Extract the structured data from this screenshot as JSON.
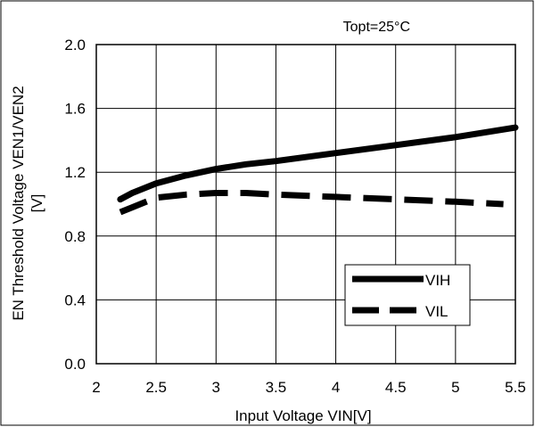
{
  "chart_data": {
    "type": "line",
    "title": "",
    "annotation": "Topt=25°C",
    "xlabel": "Input Voltage VIN[V]",
    "ylabel_line1": "EN Threshold Voltage VEN1/VEN2",
    "ylabel_line2": "[V]",
    "xlim": [
      2,
      5.5
    ],
    "ylim": [
      0,
      2.0
    ],
    "xticks": [
      2,
      2.5,
      3,
      3.5,
      4,
      4.5,
      5,
      5.5
    ],
    "xtick_labels": [
      "2",
      "2.5",
      "3",
      "3.5",
      "4",
      "4.5",
      "5",
      "5.5"
    ],
    "yticks": [
      0,
      0.4,
      0.8,
      1.2,
      1.6,
      2.0
    ],
    "ytick_labels": [
      "0.0",
      "0.4",
      "0.8",
      "1.2",
      "1.6",
      "2.0"
    ],
    "grid": true,
    "legend_position": "bottom-right",
    "series": [
      {
        "name": "VIH",
        "style": "solid",
        "color": "#000000",
        "x": [
          2.2,
          2.3,
          2.5,
          2.75,
          3.0,
          3.25,
          3.5,
          4.0,
          4.5,
          5.0,
          5.5
        ],
        "y": [
          1.03,
          1.07,
          1.13,
          1.18,
          1.22,
          1.25,
          1.27,
          1.32,
          1.37,
          1.42,
          1.48
        ]
      },
      {
        "name": "VIL",
        "style": "dashed",
        "color": "#000000",
        "x": [
          2.2,
          2.3,
          2.5,
          2.75,
          3.0,
          3.25,
          3.5,
          4.0,
          4.5,
          5.0,
          5.4
        ],
        "y": [
          0.95,
          0.98,
          1.04,
          1.06,
          1.07,
          1.07,
          1.06,
          1.045,
          1.03,
          1.015,
          1.0
        ]
      }
    ]
  }
}
